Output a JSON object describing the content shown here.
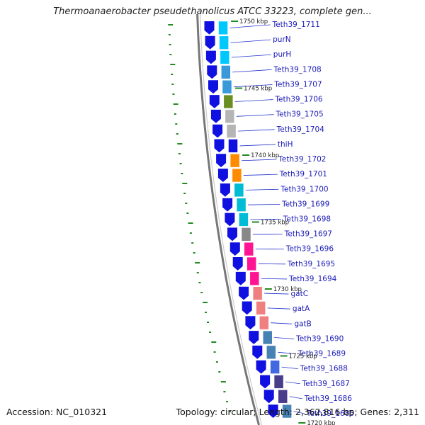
{
  "title": "Thermoanaerobacter pseudethanolicus ATCC 33223, complete gen...",
  "footer": {
    "accession": "Accession: NC_010321",
    "stats": "Topology: circular; Length: 2,362,816 bp; Genes: 2,311"
  },
  "scale_labels": [
    "1750 kbp",
    "1745 kbp",
    "1740 kbp",
    "1735 kbp",
    "1730 kbp",
    "1725 kbp",
    "1720 kbp"
  ],
  "genes": [
    {
      "label": "Teth39_1711",
      "color": "#00c8ff"
    },
    {
      "label": "purN",
      "color": "#00c8ff"
    },
    {
      "label": "purH",
      "color": "#00c8ff"
    },
    {
      "label": "Teth39_1708",
      "color": "#3a9ad9"
    },
    {
      "label": "Teth39_1707",
      "color": "#3a9ad9"
    },
    {
      "label": "Teth39_1706",
      "color": "#6b8e23"
    },
    {
      "label": "Teth39_1705",
      "color": "#b5b5b5"
    },
    {
      "label": "Teth39_1704",
      "color": "#b5b5b5"
    },
    {
      "label": "thiH",
      "color": "#1010e0"
    },
    {
      "label": "Teth39_1702",
      "color": "#ff8c00"
    },
    {
      "label": "Teth39_1701",
      "color": "#ff8c00"
    },
    {
      "label": "Teth39_1700",
      "color": "#00bcd4"
    },
    {
      "label": "Teth39_1699",
      "color": "#00bcd4"
    },
    {
      "label": "Teth39_1698",
      "color": "#00bcd4"
    },
    {
      "label": "Teth39_1697",
      "color": "#888888"
    },
    {
      "label": "Teth39_1696",
      "color": "#ff1493"
    },
    {
      "label": "Teth39_1695",
      "color": "#ff1493"
    },
    {
      "label": "Teth39_1694",
      "color": "#ff1493"
    },
    {
      "label": "gatC",
      "color": "#f08080"
    },
    {
      "label": "gatA",
      "color": "#f08080"
    },
    {
      "label": "gatB",
      "color": "#f08080"
    },
    {
      "label": "Teth39_1690",
      "color": "#4682b4"
    },
    {
      "label": "Teth39_1689",
      "color": "#4682b4"
    },
    {
      "label": "Teth39_1688",
      "color": "#4169e1"
    },
    {
      "label": "Teth39_1687",
      "color": "#483d8b"
    },
    {
      "label": "Teth39_1686",
      "color": "#483d8b"
    },
    {
      "label": "Teth39_1685",
      "color": "#4682b4"
    }
  ],
  "colors": {
    "arrow": "#1010e0",
    "backbone": "#888888",
    "tick": "#228b22"
  }
}
